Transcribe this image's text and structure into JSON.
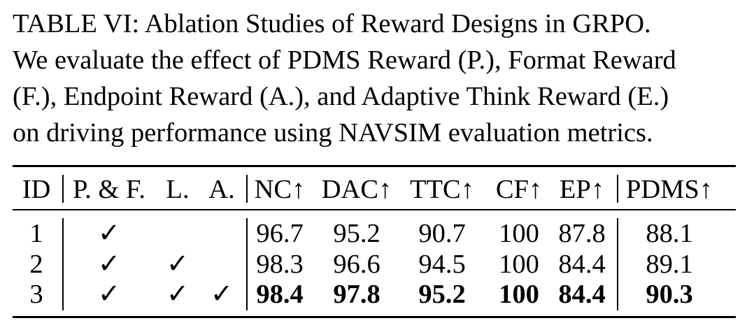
{
  "caption": {
    "lines": [
      "TABLE VI: Ablation Studies of Reward Designs in GRPO.",
      "We evaluate the effect of PDMS Reward (P.), Format Reward",
      "(F.), Endpoint Reward (A.), and Adaptive Think Reward (E.)",
      "on driving performance using NAVSIM evaluation metrics."
    ]
  },
  "table": {
    "headers": [
      "ID",
      "P. & F.",
      "L.",
      "A.",
      "NC↑",
      "DAC↑",
      "TTC↑",
      "CF↑",
      "EP↑",
      "PDMS↑"
    ],
    "rows": [
      {
        "cells": [
          "1",
          "✓",
          "",
          "",
          "96.7",
          "95.2",
          "90.7",
          "100",
          "87.8",
          "88.1"
        ],
        "bold": false
      },
      {
        "cells": [
          "2",
          "✓",
          "✓",
          "",
          "98.3",
          "96.6",
          "94.5",
          "100",
          "84.4",
          "89.1"
        ],
        "bold": false
      },
      {
        "cells": [
          "3",
          "✓",
          "✓",
          "✓",
          "98.4",
          "97.8",
          "95.2",
          "100",
          "84.4",
          "90.3"
        ],
        "bold": true
      }
    ]
  }
}
